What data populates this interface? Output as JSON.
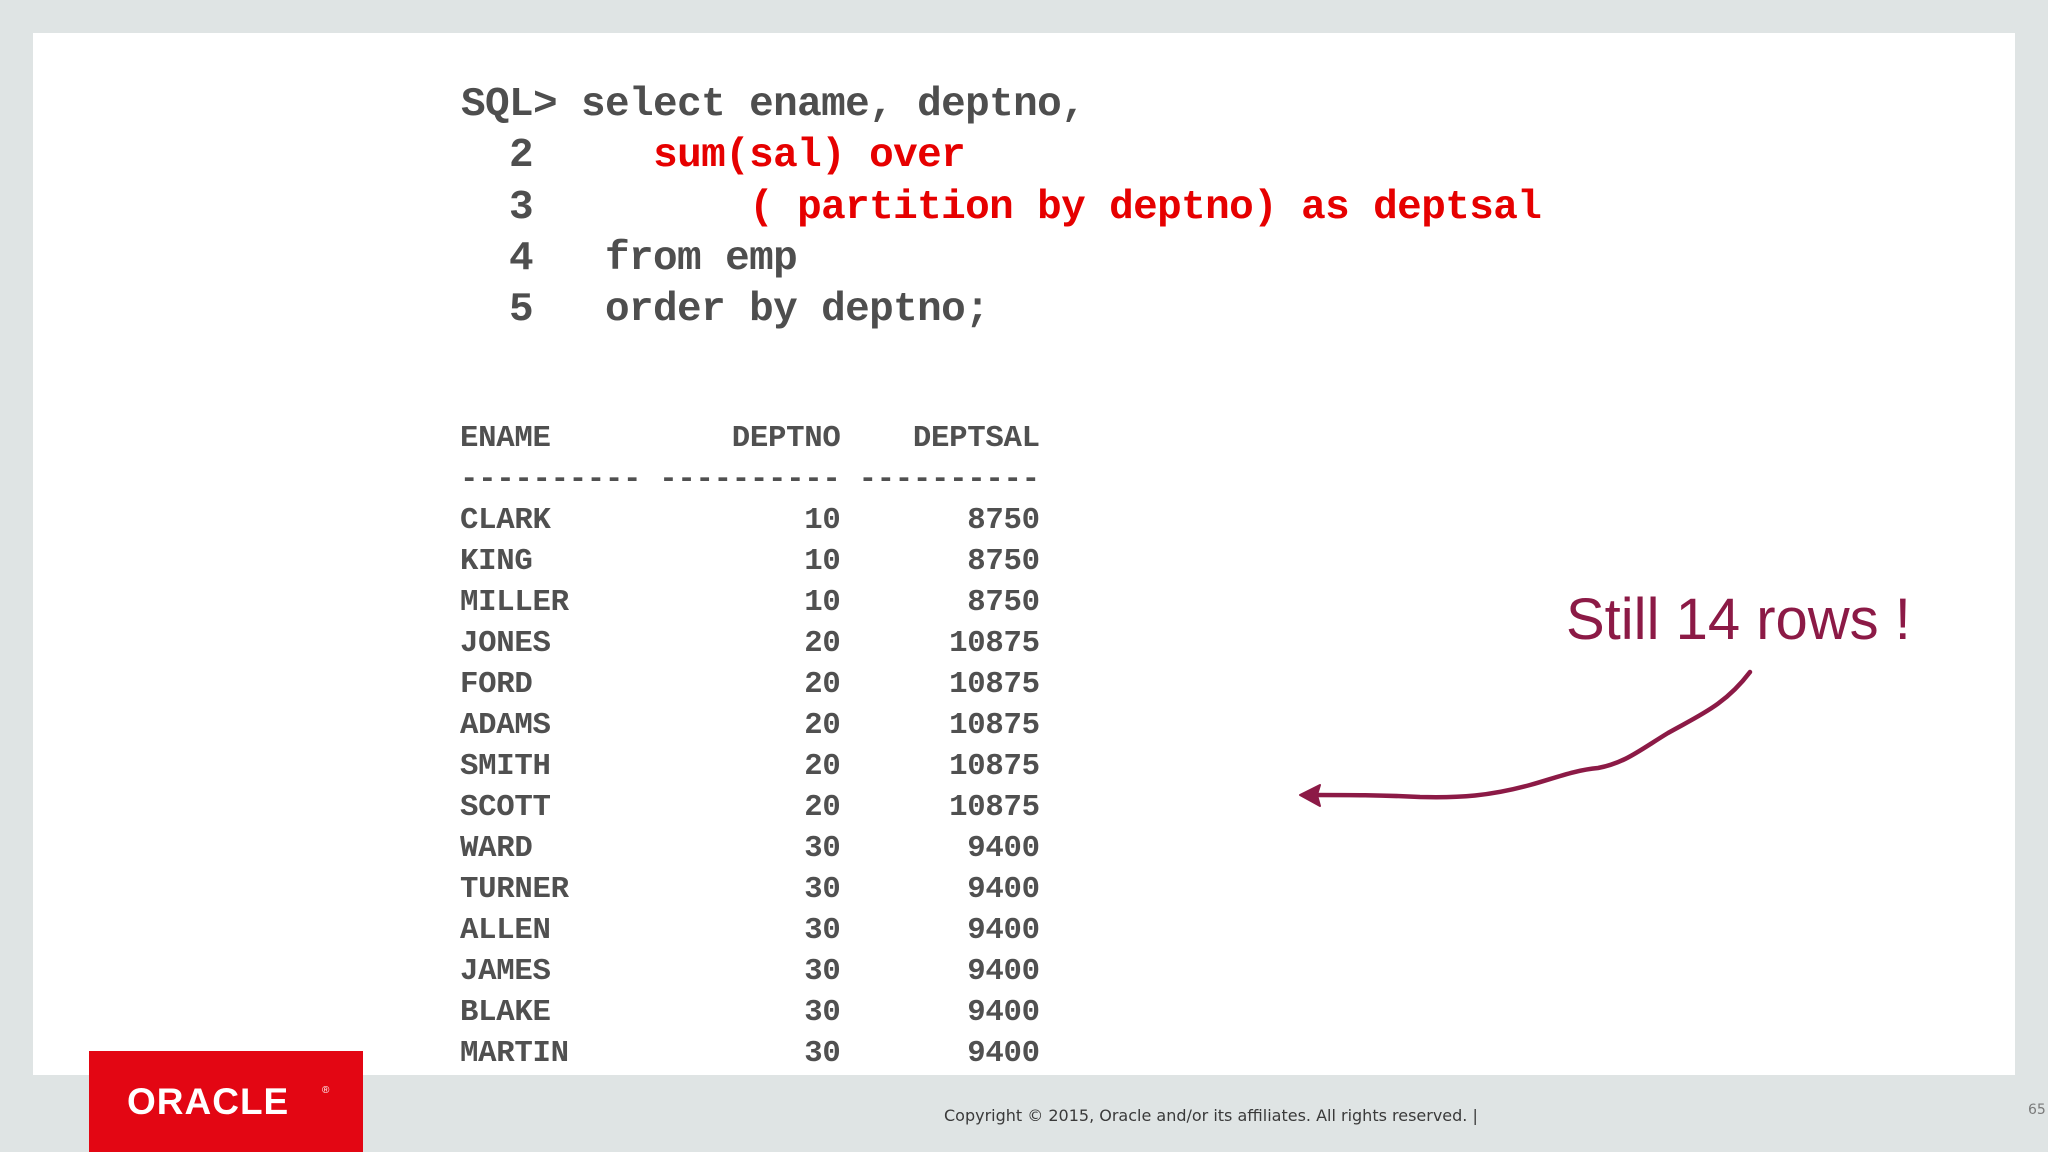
{
  "sql": {
    "prompt": "SQL>",
    "lines": [
      {
        "num": "",
        "plain": "select ename, deptno,",
        "highlight": ""
      },
      {
        "num": "2",
        "plain": "",
        "highlight": "sum(sal) over"
      },
      {
        "num": "3",
        "plain": "",
        "highlight": "( partition by deptno) as deptsal"
      },
      {
        "num": "4",
        "plain": "from emp",
        "highlight": ""
      },
      {
        "num": "5",
        "plain": "order by deptno;",
        "highlight": ""
      }
    ],
    "highlight_color": "#e60000"
  },
  "result": {
    "headers": [
      "ENAME",
      "DEPTNO",
      "DEPTSAL"
    ],
    "separator": "----------",
    "rows": [
      [
        "CLARK",
        "10",
        "8750"
      ],
      [
        "KING",
        "10",
        "8750"
      ],
      [
        "MILLER",
        "10",
        "8750"
      ],
      [
        "JONES",
        "20",
        "10875"
      ],
      [
        "FORD",
        "20",
        "10875"
      ],
      [
        "ADAMS",
        "20",
        "10875"
      ],
      [
        "SMITH",
        "20",
        "10875"
      ],
      [
        "SCOTT",
        "20",
        "10875"
      ],
      [
        "WARD",
        "30",
        "9400"
      ],
      [
        "TURNER",
        "30",
        "9400"
      ],
      [
        "ALLEN",
        "30",
        "9400"
      ],
      [
        "JAMES",
        "30",
        "9400"
      ],
      [
        "BLAKE",
        "30",
        "9400"
      ],
      [
        "MARTIN",
        "30",
        "9400"
      ]
    ]
  },
  "annotation": {
    "text": "Still 14 rows !",
    "color": "#8c1a46",
    "icon": "curved-arrow-left"
  },
  "footer": {
    "logo": "ORACLE",
    "logo_mark": "®",
    "copyright": "Copyright © 2015, Oracle and/or its affiliates. All rights reserved.  |",
    "page_number": "65",
    "brand_color": "#e30613"
  }
}
